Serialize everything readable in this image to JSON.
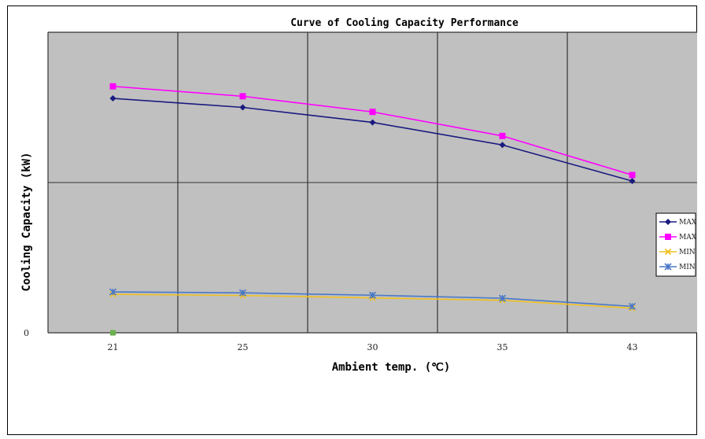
{
  "chart_data": {
    "type": "line",
    "title": "Curve of Cooling Capacity Performance",
    "xlabel": "Ambient temp.  (℃)",
    "ylabel": "Cooling Capacity (kW)",
    "categories": [
      "21",
      "25",
      "30",
      "35",
      "43"
    ],
    "y_tick_labels": [
      "0"
    ],
    "ylim": [
      0,
      100
    ],
    "grid": true,
    "legend_position": "right",
    "series": [
      {
        "name": "MAX",
        "values": [
          78,
          75,
          70,
          62.5,
          50.5
        ],
        "color": "#1a1a80",
        "marker": "diamond"
      },
      {
        "name": "MAX",
        "values": [
          82,
          78.7,
          73.5,
          65.5,
          52.5
        ],
        "color": "#ff00ff",
        "marker": "square"
      },
      {
        "name": "MIN",
        "values": [
          12.8,
          12.4,
          11.6,
          10.8,
          8.2
        ],
        "color": "#f0c020",
        "marker": "x"
      },
      {
        "name": "MIN",
        "values": [
          13.6,
          13.3,
          12.5,
          11.5,
          8.8
        ],
        "color": "#4a78c8",
        "marker": "star"
      }
    ],
    "extra_point": {
      "category": "21",
      "value": 0,
      "color": "#6ab04c"
    }
  }
}
